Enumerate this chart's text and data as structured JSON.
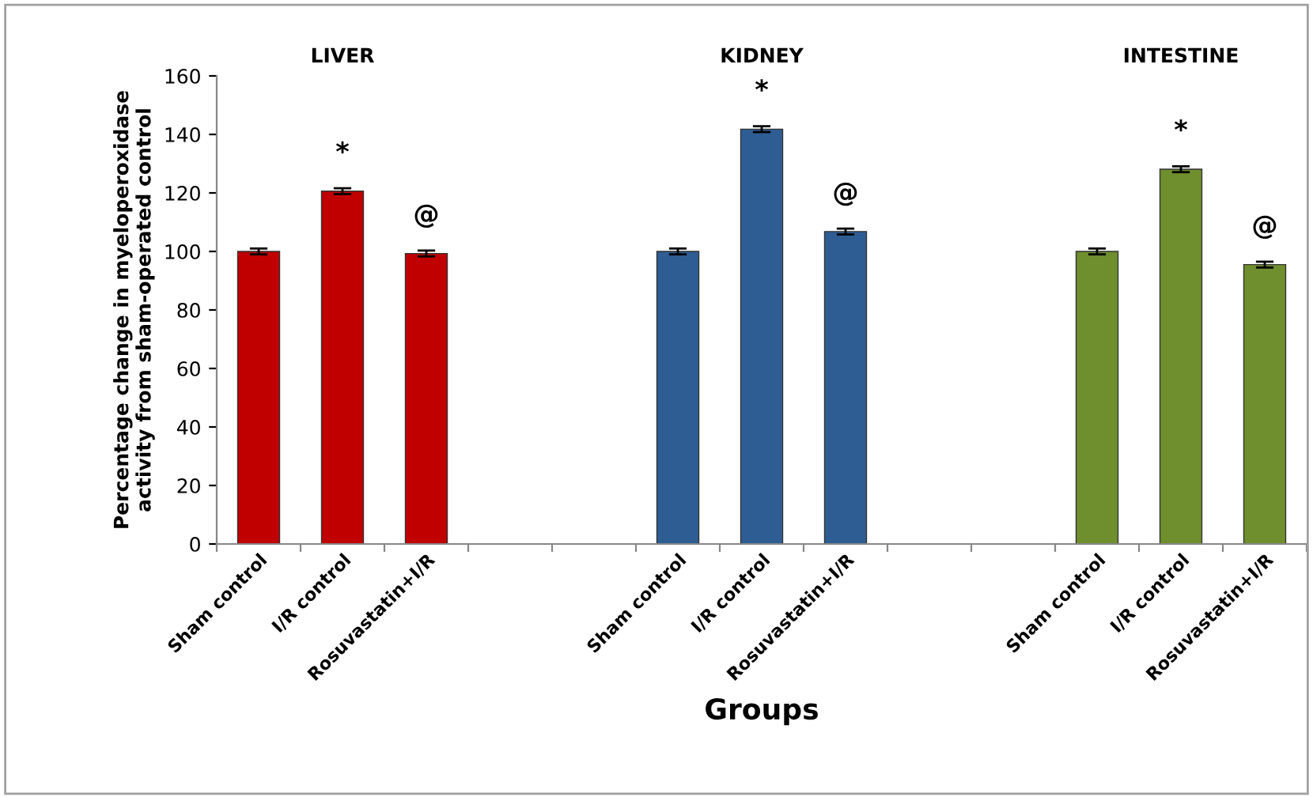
{
  "chart_data": {
    "type": "bar",
    "xlabel": "Groups",
    "ylabel": "Percentage change in myeloperoxidase\nactivity from sham-operated control",
    "categories": [
      "Sham control",
      "I/R control",
      "Rosuvastatin+I/R",
      null,
      null,
      "Sham control",
      "I/R control",
      "Rosuvastatin+I/R",
      null,
      null,
      "Sham control",
      "I/R control",
      "Rosuvastatin+I/R"
    ],
    "values": [
      100,
      120.6,
      99.3,
      null,
      null,
      100,
      141.8,
      106.8,
      null,
      null,
      100,
      128.1,
      95.5
    ],
    "errors": [
      1,
      1,
      1,
      null,
      null,
      1,
      1,
      1,
      null,
      null,
      1,
      1,
      1
    ],
    "colors": [
      "#c00000",
      "#c00000",
      "#c00000",
      null,
      null,
      "#2e5d94",
      "#2e5d94",
      "#2e5d94",
      null,
      null,
      "#6f8f2e",
      "#6f8f2e",
      "#6f8f2e"
    ],
    "value_labels": [
      null,
      "*",
      "@",
      null,
      null,
      null,
      "*",
      "@",
      null,
      null,
      null,
      "*",
      "@"
    ],
    "annotations": [
      "LIVER",
      "KIDNEY",
      "INTESTINE"
    ],
    "ylim": [
      0,
      160
    ],
    "yticks": [
      0,
      20,
      40,
      60,
      80,
      100,
      120,
      140,
      160
    ],
    "grid": false,
    "legend": false
  }
}
